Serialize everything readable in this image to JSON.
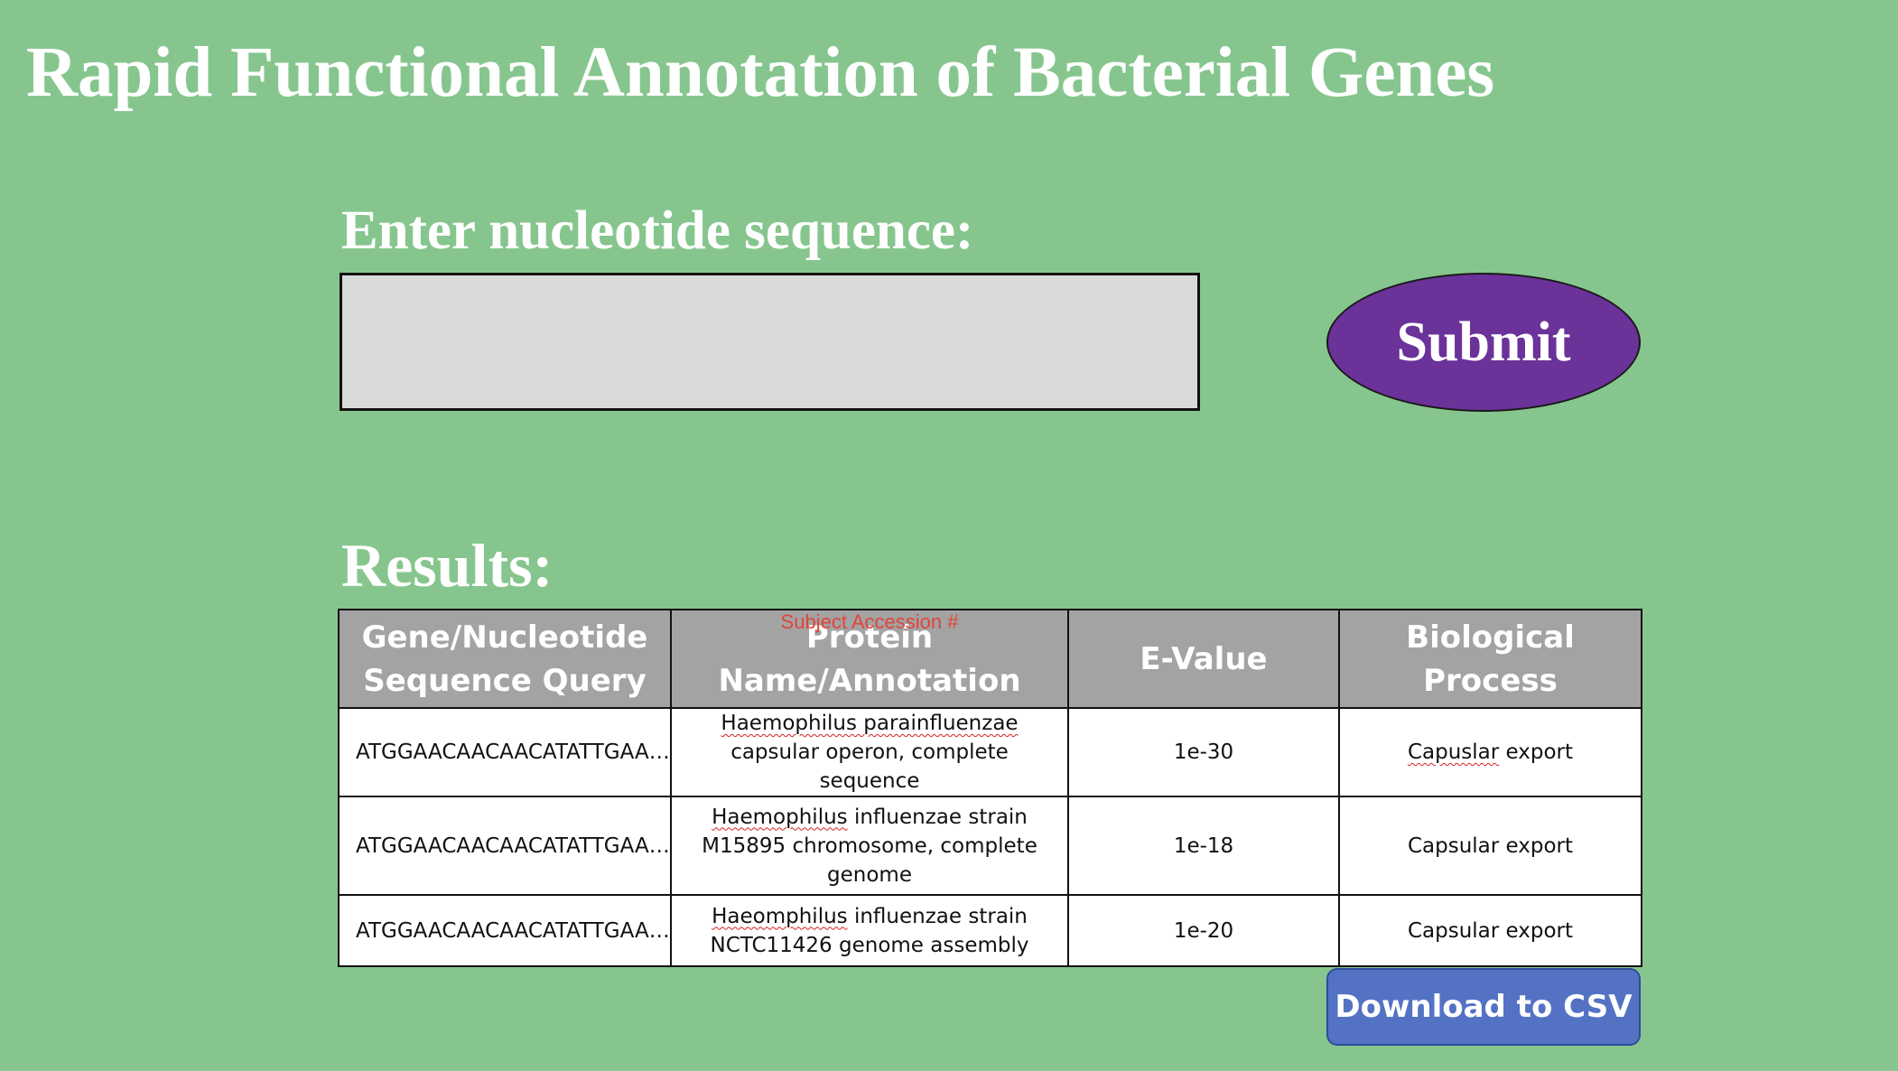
{
  "page": {
    "title": "Rapid Functional Annotation of Bacterial Genes",
    "input_label": "Enter nucleotide sequence:",
    "input_value": "",
    "submit_label": "Submit",
    "results_label": "Results:",
    "download_label": "Download to CSV"
  },
  "table": {
    "headers": {
      "query": "Gene/Nucleotide Sequence Query",
      "protein": "Protein Name/Annotation",
      "evalue": "E-Value",
      "process": "Biological Process"
    },
    "accession_note": "Subject  Accession #",
    "rows": [
      {
        "query": "ATGGAACAACAACATATTGAA…",
        "protein_genus": "Haemophilus parainfluenzae",
        "protein_rest": "capsular operon, complete sequence",
        "evalue": "1e-30",
        "process_word": "Capuslar",
        "process_rest": "export"
      },
      {
        "query": "ATGGAACAACAACATATTGAA…",
        "protein_genus": "Haemophilus",
        "protein_rest": "influenzae strain M15895 chromosome, complete genome",
        "evalue": "1e-18",
        "process": "Capsular export"
      },
      {
        "query": "ATGGAACAACAACATATTGAA…",
        "protein_genus": "Haeomphilus",
        "protein_rest": "influenzae strain NCTC11426 genome assembly",
        "evalue": "1e-20",
        "process": "Capsular export"
      }
    ]
  },
  "colors": {
    "background": "#86c68e",
    "submit": "#6b329a",
    "download": "#5372c4",
    "header": "#a3a3a3",
    "input": "#d9d9d9"
  }
}
